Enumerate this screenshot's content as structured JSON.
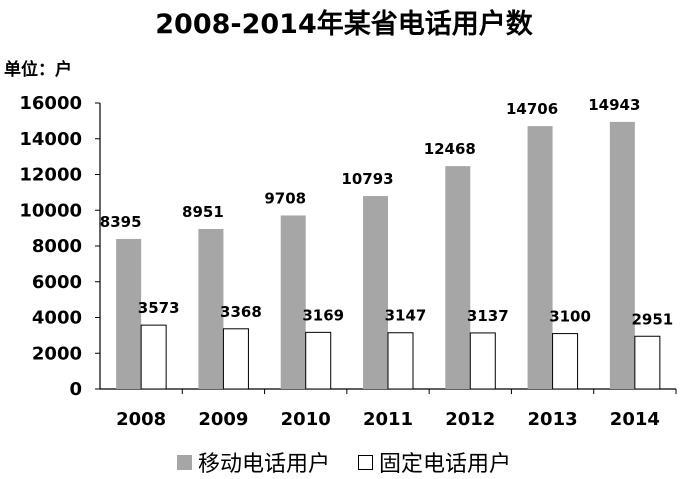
{
  "chart_data": {
    "type": "bar",
    "title": "2008-2014年某省电话用户数",
    "ylabel": "单位：户",
    "xlabel": "",
    "categories": [
      "2008",
      "2009",
      "2010",
      "2011",
      "2012",
      "2013",
      "2014"
    ],
    "series": [
      {
        "name": "移动电话用户",
        "color": "#a6a6a6",
        "values": [
          8395,
          8951,
          9708,
          10793,
          12468,
          14706,
          14943
        ]
      },
      {
        "name": "固定电话用户",
        "color": "#ffffff",
        "values": [
          3573,
          3368,
          3169,
          3147,
          3137,
          3100,
          2951
        ]
      }
    ],
    "ylim": [
      0,
      16000
    ],
    "yticks": [
      0,
      2000,
      4000,
      6000,
      8000,
      10000,
      12000,
      14000,
      16000
    ],
    "grid": false,
    "legend_position": "bottom"
  }
}
